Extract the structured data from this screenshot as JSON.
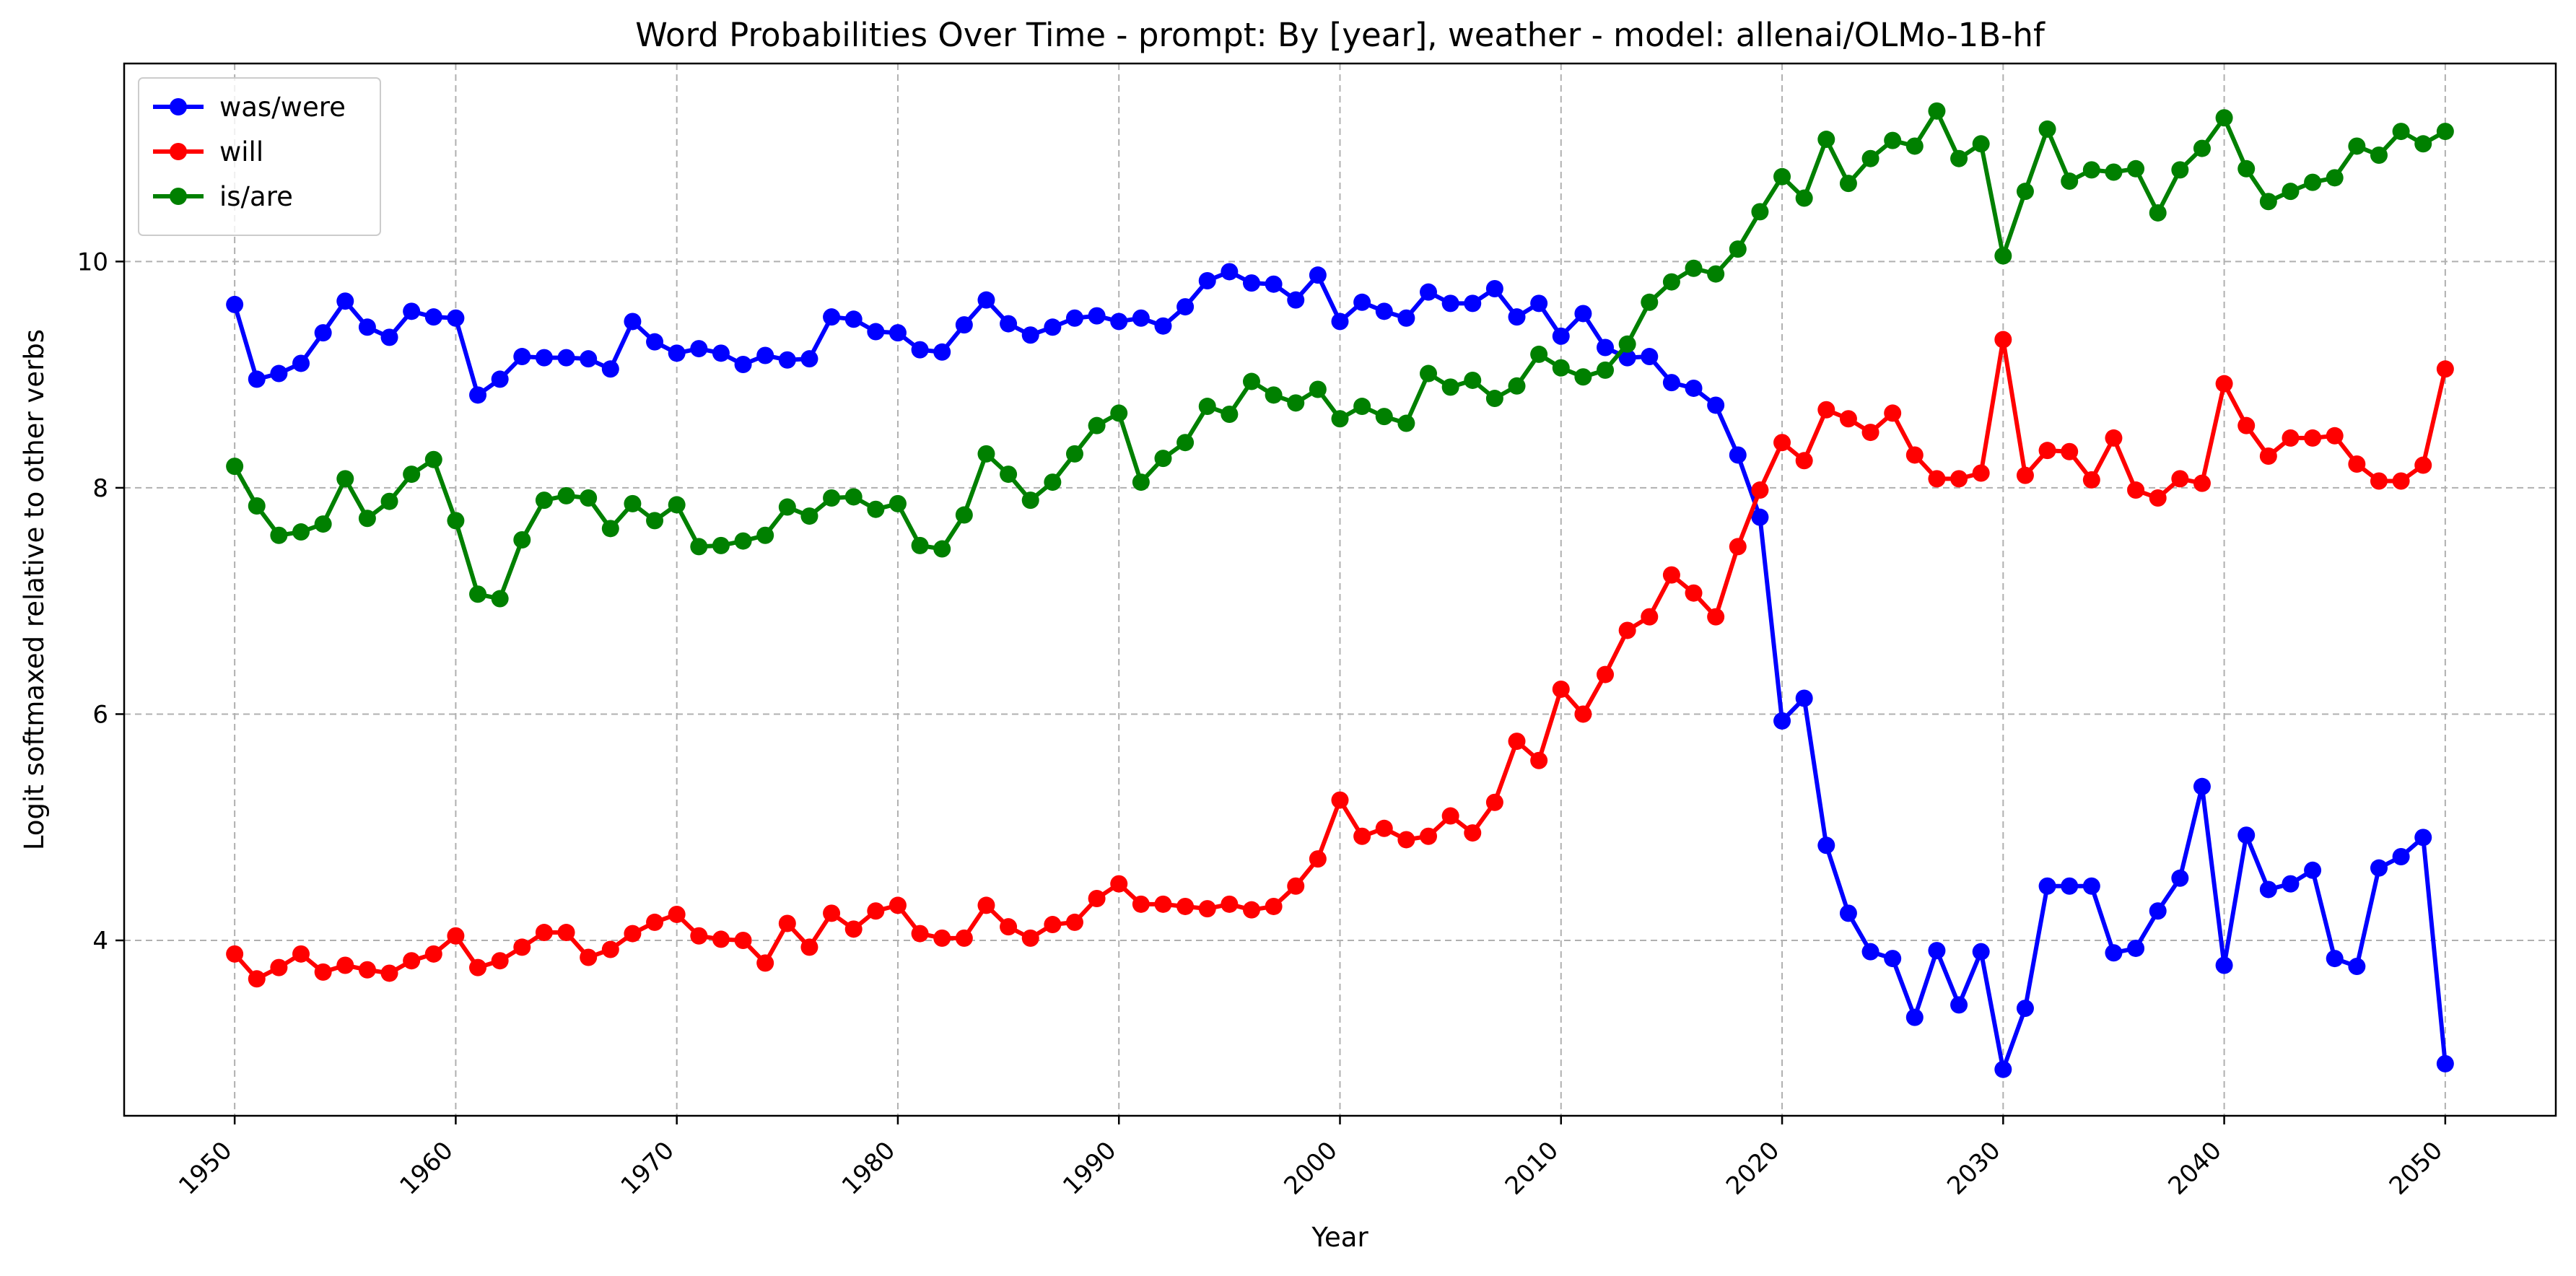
{
  "chart_data": {
    "type": "line",
    "title": "Word Probabilities Over Time - prompt: By [year], weather - model: allenai/OLMo-1B-hf",
    "xlabel": "Year",
    "ylabel": "Logit softmaxed relative to other verbs",
    "xlim": [
      1945,
      2055
    ],
    "ylim": [
      2.45,
      11.75
    ],
    "x_ticks": [
      1950,
      1960,
      1970,
      1980,
      1990,
      2000,
      2010,
      2020,
      2030,
      2040,
      2050
    ],
    "y_ticks": [
      4,
      6,
      8,
      10
    ],
    "grid": true,
    "legend_position": "top-left",
    "x_start": 1950,
    "series": [
      {
        "name": "was/were",
        "color": "#0000ff",
        "values": [
          9.62,
          8.96,
          9.01,
          9.1,
          9.37,
          9.65,
          9.42,
          9.33,
          9.56,
          9.51,
          9.5,
          8.82,
          8.96,
          9.16,
          9.15,
          9.15,
          9.14,
          9.05,
          9.47,
          9.29,
          9.19,
          9.23,
          9.19,
          9.09,
          9.17,
          9.13,
          9.14,
          9.51,
          9.49,
          9.38,
          9.37,
          9.22,
          9.2,
          9.44,
          9.66,
          9.45,
          9.35,
          9.42,
          9.5,
          9.52,
          9.47,
          9.5,
          9.43,
          9.6,
          9.83,
          9.91,
          9.81,
          9.8,
          9.66,
          9.88,
          9.47,
          9.64,
          9.56,
          9.5,
          9.73,
          9.63,
          9.63,
          9.76,
          9.51,
          9.63,
          9.34,
          9.54,
          9.24,
          9.15,
          9.16,
          8.93,
          8.88,
          8.73,
          8.29,
          7.74,
          5.94,
          6.14,
          4.84,
          4.24,
          3.9,
          3.84,
          3.32,
          3.91,
          3.43,
          3.9,
          2.86,
          3.4,
          4.48,
          4.48,
          4.48,
          3.89,
          3.93,
          4.26,
          4.55,
          5.36,
          3.78,
          4.93,
          4.45,
          4.5,
          4.62,
          3.84,
          3.77,
          4.64,
          4.74,
          4.91,
          2.91
        ]
      },
      {
        "name": "will",
        "color": "#ff0000",
        "values": [
          3.88,
          3.66,
          3.76,
          3.88,
          3.72,
          3.78,
          3.74,
          3.71,
          3.82,
          3.88,
          4.04,
          3.76,
          3.82,
          3.94,
          4.07,
          4.07,
          3.85,
          3.92,
          4.06,
          4.16,
          4.23,
          4.04,
          4.01,
          4.0,
          3.8,
          4.15,
          3.94,
          4.24,
          4.1,
          4.26,
          4.31,
          4.06,
          4.02,
          4.02,
          4.31,
          4.12,
          4.02,
          4.14,
          4.16,
          4.37,
          4.5,
          4.32,
          4.32,
          4.3,
          4.28,
          4.32,
          4.27,
          4.3,
          4.48,
          4.72,
          5.24,
          4.92,
          4.99,
          4.89,
          4.92,
          5.1,
          4.95,
          5.22,
          5.76,
          5.59,
          6.22,
          6.0,
          6.35,
          6.74,
          6.86,
          7.23,
          7.07,
          6.86,
          7.48,
          7.98,
          8.4,
          8.24,
          8.69,
          8.61,
          8.49,
          8.66,
          8.29,
          8.08,
          8.08,
          8.13,
          9.31,
          8.11,
          8.33,
          8.32,
          8.07,
          8.44,
          7.98,
          7.91,
          8.08,
          8.04,
          8.92,
          8.55,
          8.28,
          8.44,
          8.44,
          8.46,
          8.21,
          8.06,
          8.06,
          8.2,
          9.05
        ]
      },
      {
        "name": "is/are",
        "color": "#008000",
        "values": [
          8.19,
          7.84,
          7.58,
          7.61,
          7.68,
          8.08,
          7.73,
          7.88,
          8.12,
          8.25,
          7.71,
          7.06,
          7.02,
          7.54,
          7.89,
          7.93,
          7.91,
          7.64,
          7.86,
          7.71,
          7.85,
          7.48,
          7.49,
          7.53,
          7.58,
          7.83,
          7.75,
          7.91,
          7.92,
          7.81,
          7.86,
          7.49,
          7.46,
          7.76,
          8.3,
          8.12,
          7.89,
          8.05,
          8.3,
          8.55,
          8.66,
          8.05,
          8.26,
          8.4,
          8.72,
          8.65,
          8.94,
          8.82,
          8.75,
          8.87,
          8.61,
          8.72,
          8.63,
          8.57,
          9.01,
          8.89,
          8.95,
          8.79,
          8.9,
          9.18,
          9.06,
          8.98,
          9.04,
          9.27,
          9.64,
          9.82,
          9.94,
          9.89,
          10.11,
          10.44,
          10.75,
          10.56,
          11.08,
          10.69,
          10.91,
          11.07,
          11.02,
          11.33,
          10.91,
          11.04,
          10.05,
          10.62,
          11.17,
          10.71,
          10.81,
          10.79,
          10.82,
          10.43,
          10.81,
          11.0,
          11.27,
          10.82,
          10.53,
          10.62,
          10.7,
          10.74,
          11.02,
          10.94,
          11.15,
          11.04,
          11.15
        ]
      }
    ]
  }
}
